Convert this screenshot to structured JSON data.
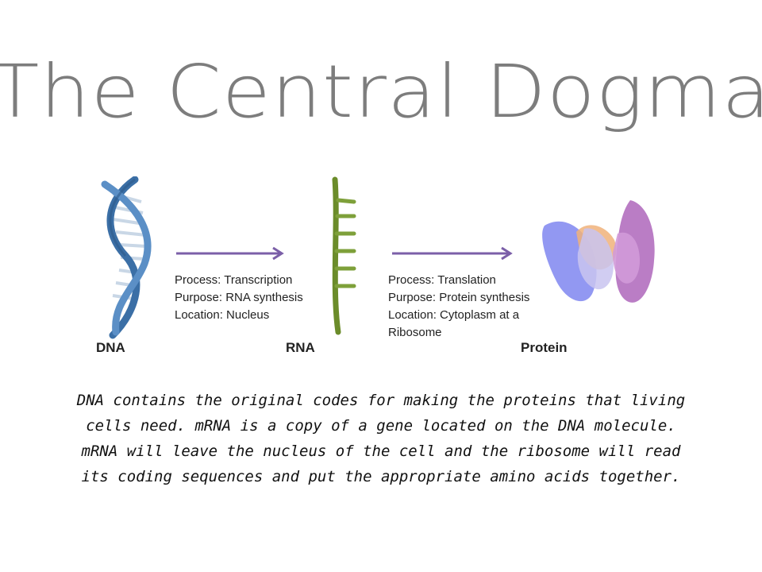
{
  "title": "The Central Dogma",
  "dna": {
    "label": "DNA",
    "process": "Process:  Transcription",
    "purpose": "Purpose:  RNA synthesis",
    "location": "Location:  Nucleus"
  },
  "rna": {
    "label": "RNA",
    "process": "Process:  Translation",
    "purpose": "Purpose:  Protein synthesis",
    "location": "Location:  Cytoplasm at a",
    "location_cont": "Ribosome"
  },
  "protein": {
    "label": "Protein"
  },
  "colors": {
    "arrow": "#7b5fa8",
    "title": "#7d7d7d",
    "dna": "#3b6fa6",
    "rna": "#6b8c2a"
  },
  "description": "DNA contains the original codes for making the proteins that living cells need.  mRNA is a copy of a gene located on the DNA molecule.  mRNA will leave the nucleus of the cell and the ribosome will read its coding sequences and put the appropriate amino acids together."
}
